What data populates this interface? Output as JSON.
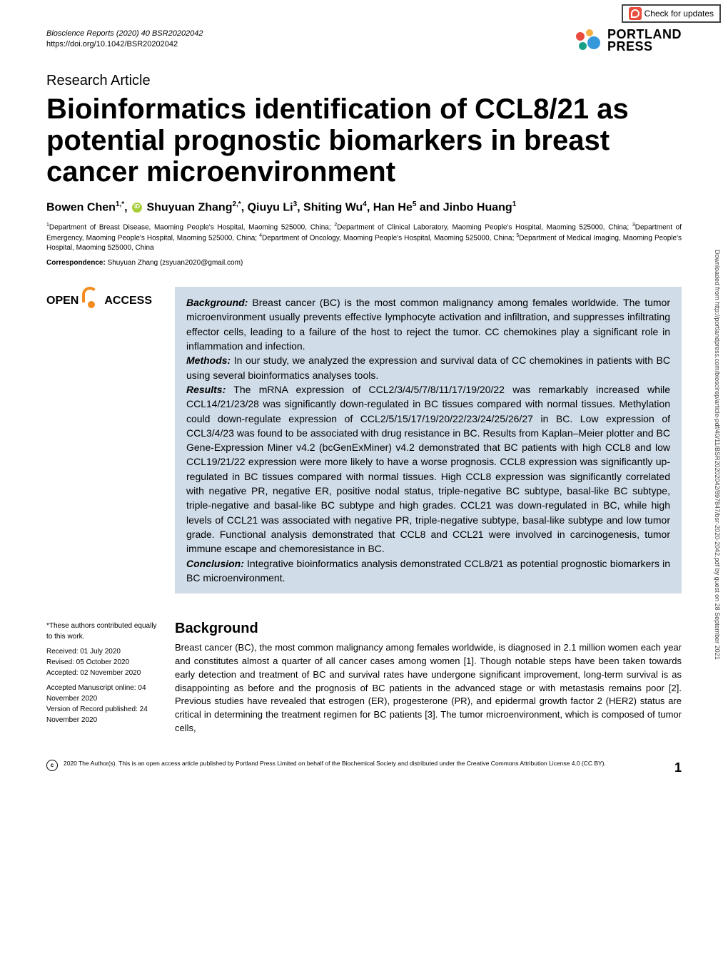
{
  "check_updates": "Check for updates",
  "journal": {
    "citation": "Bioscience Reports (2020) 40 BSR20202042",
    "doi": "https://doi.org/10.1042/BSR20202042"
  },
  "publisher": {
    "name1": "PORTLAND",
    "name2": "PRESS",
    "dot_colors": [
      "#e74c3c",
      "#f5b041",
      "#3498db",
      "#16a085"
    ]
  },
  "article_type": "Research Article",
  "title": "Bioinformatics identification of CCL8/21 as potential prognostic biomarkers in breast cancer microenvironment",
  "authors_html": "Bowen Chen<sup>1,*</sup>, {ORCID} Shuyuan Zhang<sup>2,*</sup>, Qiuyu Li<sup>3</sup>, Shiting Wu<sup>4</sup>, Han He<sup>5</sup> and Jinbo Huang<sup>1</sup>",
  "affiliations_html": "<sup>1</sup>Department of Breast Disease, Maoming People's Hospital, Maoming 525000, China; <sup>2</sup>Department of Clinical Laboratory, Maoming People's Hospital, Maoming 525000, China; <sup>3</sup>Department of Emergency, Maoming People's Hospital, Maoming 525000, China; <sup>4</sup>Department of Oncology, Maoming People's Hospital, Maoming 525000, China; <sup>5</sup>Department of Medical Imaging, Maoming People's Hospital, Maoming 525000, China",
  "correspondence": {
    "label": "Correspondence:",
    "text": " Shuyuan Zhang (zsyuan2020@gmail.com)"
  },
  "open_access": {
    "left": "OPEN",
    "right": "ACCESS",
    "lock_color": "#f68b1f"
  },
  "abstract": {
    "background_label": "Background:",
    "background": " Breast cancer (BC) is the most common malignancy among females worldwide. The tumor microenvironment usually prevents effective lymphocyte activation and infiltration, and suppresses infiltrating effector cells, leading to a failure of the host to reject the tumor. CC chemokines play a significant role in inflammation and infection.",
    "methods_label": "Methods:",
    "methods": " In our study, we analyzed the expression and survival data of CC chemokines in patients with BC using several bioinformatics analyses tools.",
    "results_label": "Results:",
    "results": " The mRNA expression of CCL2/3/4/5/7/8/11/17/19/20/22 was remarkably increased while CCL14/21/23/28 was significantly down-regulated in BC tissues compared with normal tissues. Methylation could down-regulate expression of CCL2/5/15/17/19/20/22/23/24/25/26/27 in BC. Low expression of CCL3/4/23 was found to be associated with drug resistance in BC. Results from Kaplan–Meier plotter and BC Gene-Expression Miner v4.2 (bcGenExMiner) v4.2 demonstrated that BC patients with high CCL8 and low CCL19/21/22 expression were more likely to have a worse prognosis. CCL8 expression was significantly up-regulated in BC tissues compared with normal tissues. High CCL8 expression was significantly correlated with negative PR, negative ER, positive nodal status, triple-negative BC subtype, basal-like BC subtype, triple-negative and basal-like BC subtype and high grades. CCL21 was down-regulated in BC, while high levels of CCL21 was associated with negative PR, triple-negative subtype, basal-like subtype and low tumor grade. Functional analysis demonstrated that CCL8 and CCL21 were involved in carcinogenesis, tumor immune escape and chemoresistance in BC.",
    "conclusion_label": "Conclusion:",
    "conclusion": " Integrative bioinformatics analysis demonstrated CCL8/21 as potential prognostic biomarkers in BC microenvironment.",
    "bg_color": "#d0dce8"
  },
  "footnotes": {
    "equal": "*These authors contributed equally to this work.",
    "received": "Received: 01 July 2020",
    "revised": "Revised: 05 October 2020",
    "accepted": "Accepted: 02 November 2020",
    "online": "Accepted Manuscript online: 04 November 2020",
    "published": "Version of Record published: 24 November 2020"
  },
  "background_section": {
    "heading": "Background",
    "text": "Breast cancer (BC), the most common malignancy among females worldwide, is diagnosed in 2.1 million women each year and constitutes almost a quarter of all cancer cases among women [1]. Though notable steps have been taken towards early detection and treatment of BC and survival rates have undergone significant improvement, long-term survival is as disappointing as before and the prognosis of BC patients in the advanced stage or with metastasis remains poor [2]. Previous studies have revealed that estrogen (ER), progesterone (PR), and epidermal growth factor 2 (HER2) status are critical in determining the treatment regimen for BC patients [3]. The tumor microenvironment, which is composed of tumor cells,"
  },
  "footer": {
    "cc": "c",
    "text": "2020 The Author(s). This is an open access article published by Portland Press Limited on behalf of the Biochemical Society and distributed under the Creative Commons Attribution License 4.0 (CC BY).",
    "page": "1"
  },
  "side_text": "Downloaded from http://portlandpress.com/bioscirep/article-pdf/40/11/BSR20202042/897847/bsr-2020-2042.pdf by guest on 28 September 2021"
}
